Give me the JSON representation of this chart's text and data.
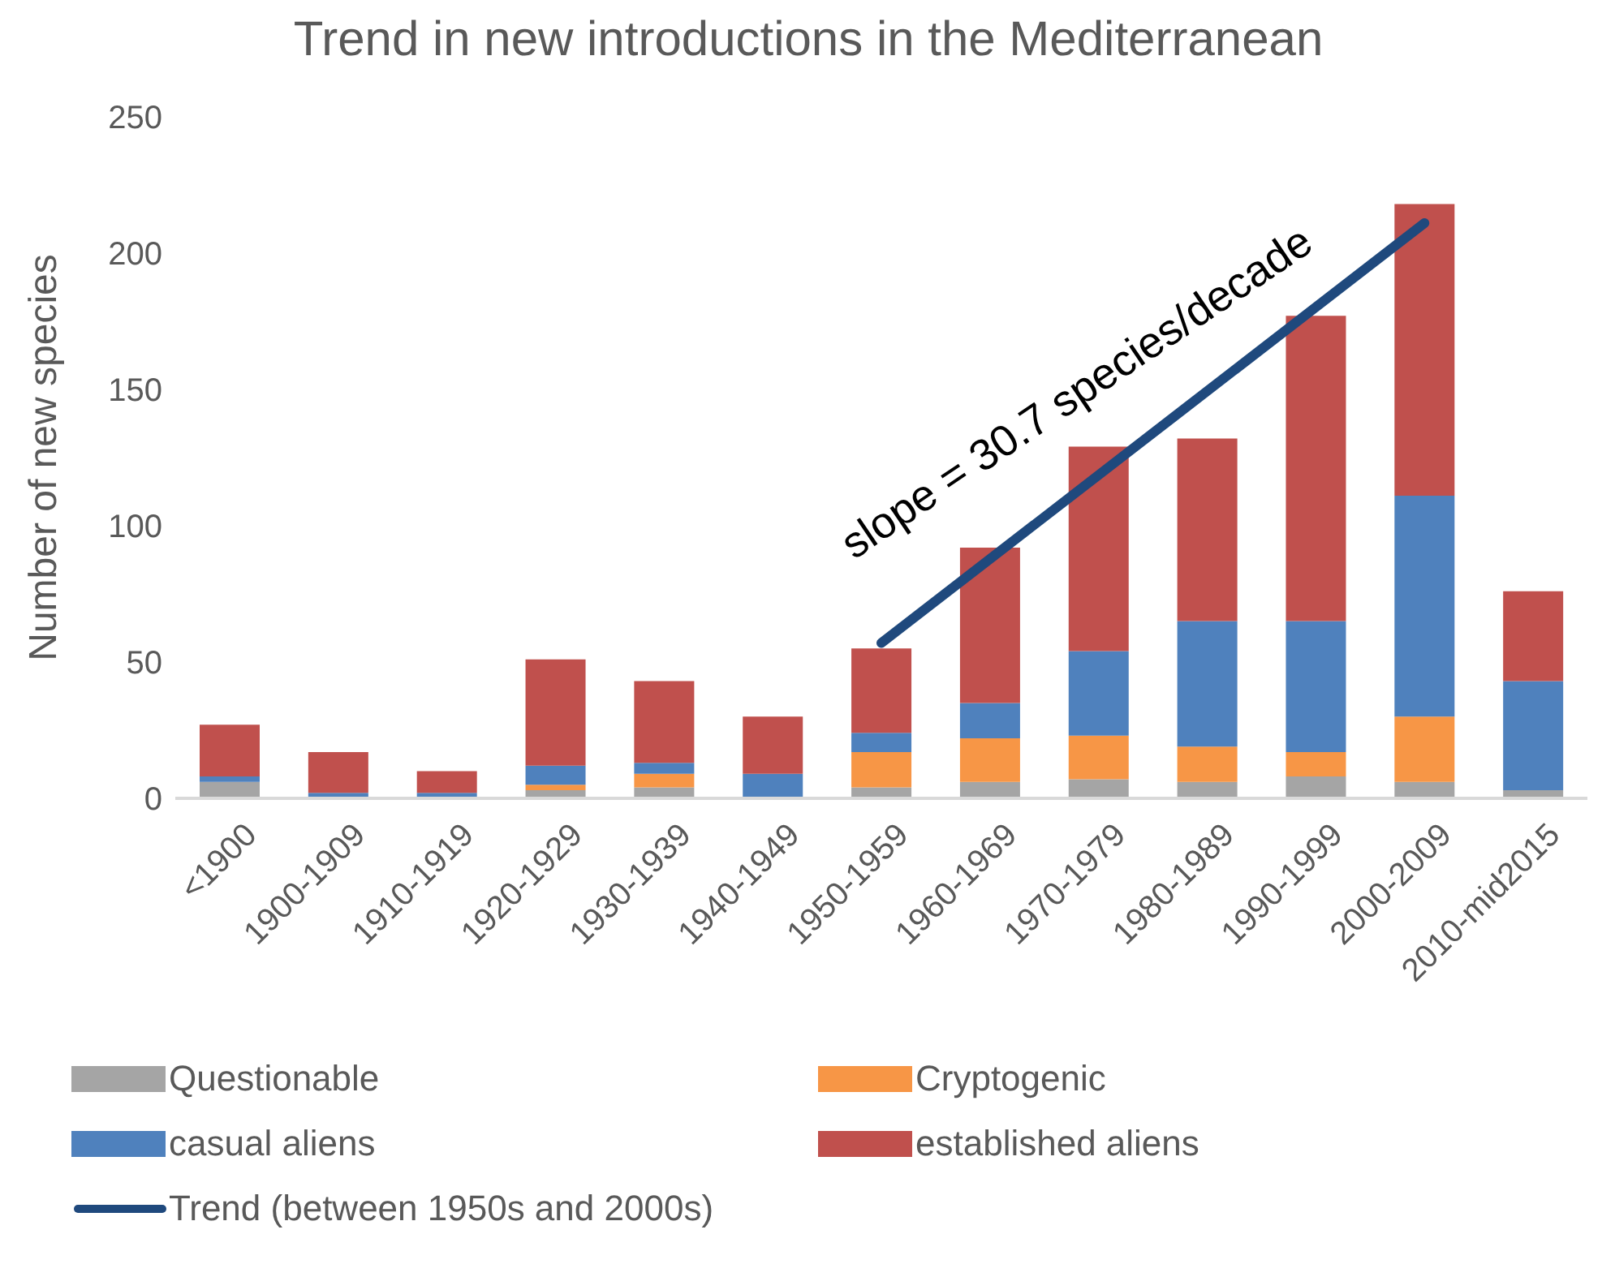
{
  "chart_data": {
    "type": "bar",
    "title": "Trend in new introductions in the Mediterranean",
    "ylabel": "Number of new species",
    "stacked": true,
    "categories": [
      "<1900",
      "1900-1909",
      "1910-1919",
      "1920-1929",
      "1930-1939",
      "1940-1949",
      "1950-1959",
      "1960-1969",
      "1970-1979",
      "1980-1989",
      "1990-1999",
      "2000-2009",
      "2010-mid2015"
    ],
    "series": [
      {
        "name": "Questionable",
        "color": "#a5a5a5",
        "values": [
          6,
          0,
          0,
          3,
          4,
          0,
          4,
          6,
          7,
          6,
          8,
          6,
          3
        ]
      },
      {
        "name": "Cryptogenic",
        "color": "#f79646",
        "values": [
          0,
          0,
          0,
          2,
          5,
          0,
          13,
          16,
          16,
          13,
          9,
          24,
          0
        ]
      },
      {
        "name": "casual aliens",
        "color": "#4f81bd",
        "values": [
          2,
          2,
          2,
          7,
          4,
          9,
          7,
          13,
          31,
          46,
          48,
          81,
          40
        ]
      },
      {
        "name": "established aliens",
        "color": "#c0504d",
        "values": [
          19,
          15,
          8,
          39,
          30,
          21,
          31,
          57,
          75,
          67,
          112,
          107,
          33
        ]
      },
      {
        "type": "line",
        "name": "Trend (between 1950s and 2000s)",
        "color": "#1f497d",
        "x": [
          "1950-1959",
          "2000-2009"
        ],
        "values": [
          57,
          211
        ]
      }
    ],
    "ylim": [
      0,
      250
    ],
    "yticks": [
      0,
      50,
      100,
      150,
      200,
      250
    ],
    "legend": "bottom",
    "annotations": [
      "slope = 30.7 species/decade"
    ]
  }
}
